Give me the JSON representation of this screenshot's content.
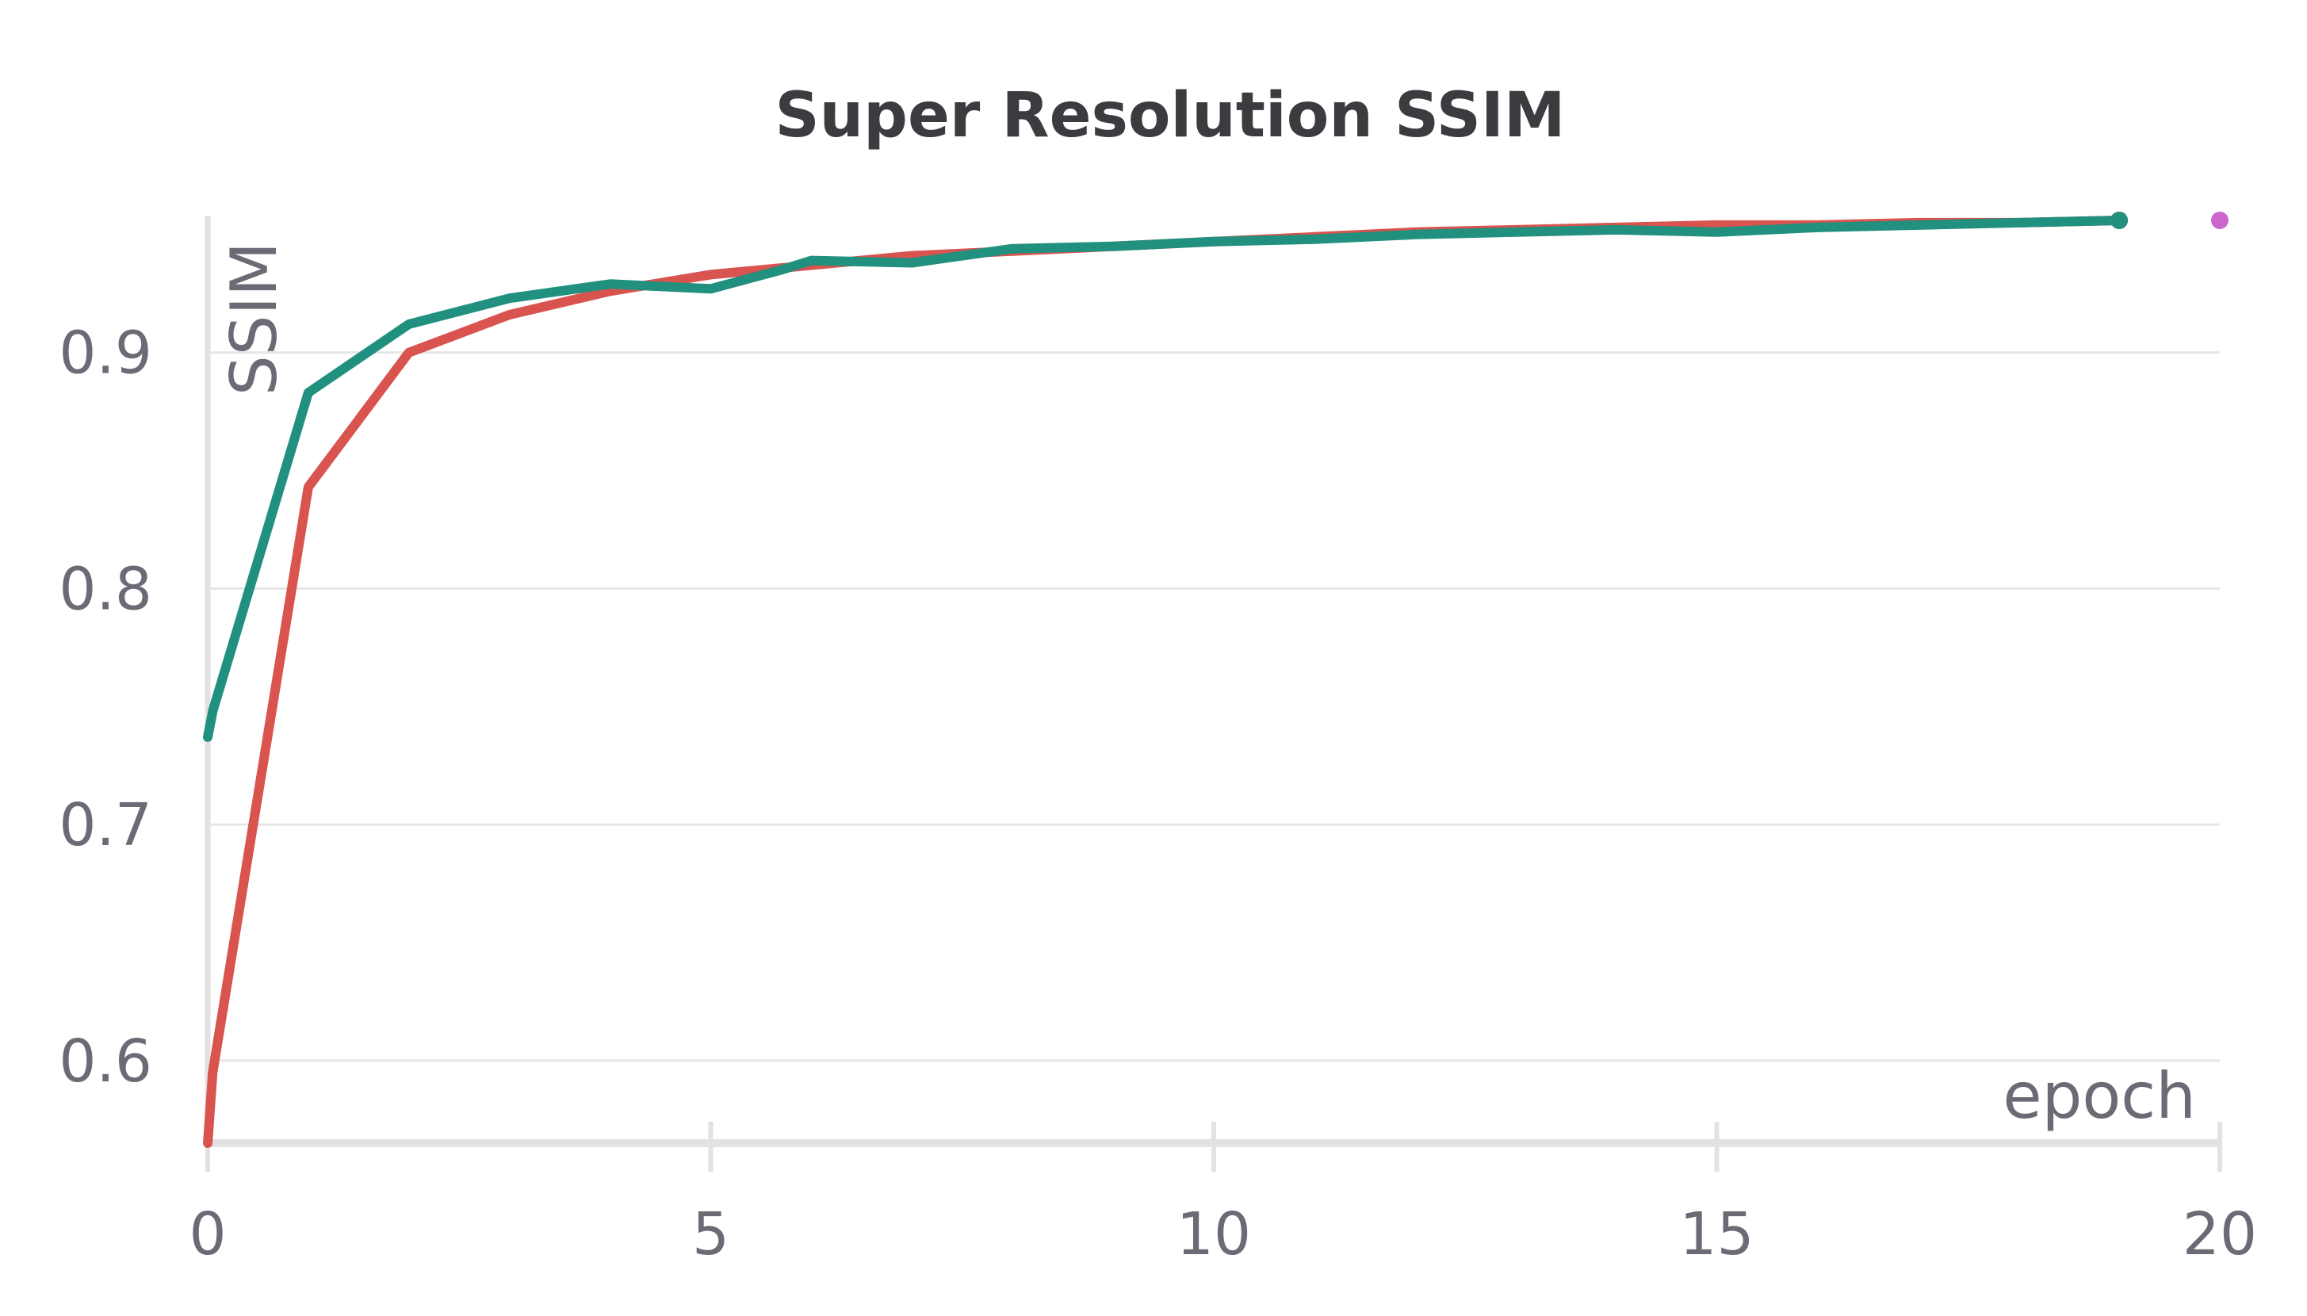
{
  "chart_data": {
    "type": "line",
    "title": "Super Resolution SSIM",
    "xlabel": "epoch",
    "ylabel": "SSIM",
    "xlim": [
      0,
      20
    ],
    "ylim": [
      0.565,
      0.958
    ],
    "xticks": [
      0,
      5,
      10,
      15,
      20
    ],
    "yticks": [
      0.6,
      0.7,
      0.8,
      0.9
    ],
    "grid": true,
    "series": [
      {
        "color": "#d9534f",
        "x": [
          0,
          0.05,
          1,
          2,
          3,
          4,
          5,
          6,
          7,
          8,
          9,
          10,
          11,
          12,
          13,
          14,
          15,
          16,
          17,
          18,
          19
        ],
        "y": [
          0.565,
          0.595,
          0.843,
          0.9,
          0.916,
          0.926,
          0.933,
          0.937,
          0.941,
          0.943,
          0.945,
          0.947,
          0.949,
          0.951,
          0.952,
          0.953,
          0.954,
          0.954,
          0.955,
          0.955,
          0.956
        ]
      },
      {
        "color": "#21907e",
        "x": [
          0,
          0.05,
          1,
          2,
          3,
          4,
          5,
          5.7,
          6,
          7,
          7.5,
          8,
          9,
          10,
          11,
          12,
          13,
          14,
          15,
          16,
          17,
          18,
          19
        ],
        "y": [
          0.737,
          0.748,
          0.883,
          0.912,
          0.923,
          0.929,
          0.927,
          0.935,
          0.939,
          0.938,
          0.941,
          0.944,
          0.945,
          0.947,
          0.948,
          0.95,
          0.951,
          0.952,
          0.951,
          0.953,
          0.954,
          0.955,
          0.956
        ]
      }
    ],
    "extra_points": [
      {
        "x": 20,
        "y": 0.956,
        "color": "#cc66cc"
      }
    ]
  }
}
